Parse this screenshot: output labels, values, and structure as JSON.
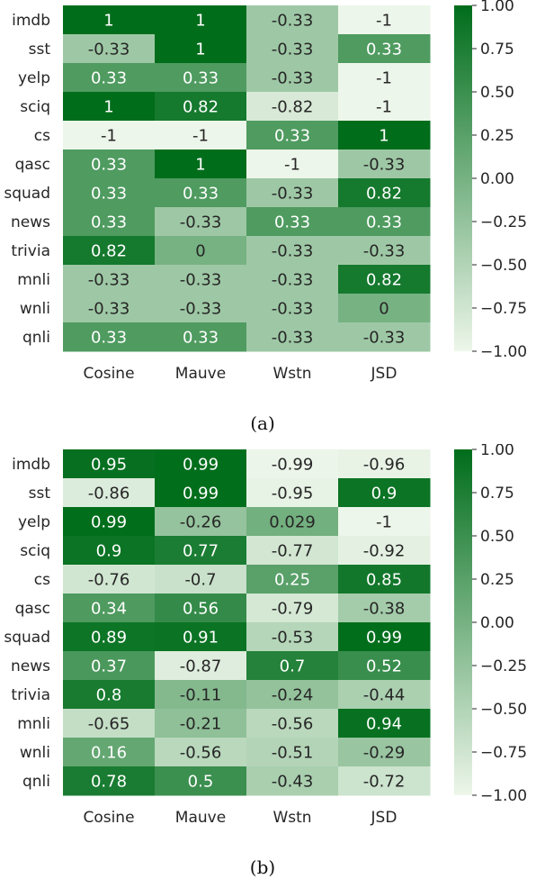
{
  "colors": {
    "low": "#edf6ea",
    "high": "#006d1b"
  },
  "chart_data": [
    {
      "type": "heatmap",
      "caption": "(a)",
      "rows": [
        "imdb",
        "sst",
        "yelp",
        "sciq",
        "cs",
        "qasc",
        "squad",
        "news",
        "trivia",
        "mnli",
        "wnli",
        "qnli"
      ],
      "columns": [
        "Cosine",
        "Mauve",
        "Wstn",
        "JSD"
      ],
      "values": [
        [
          1,
          1,
          -0.33,
          -1
        ],
        [
          -0.33,
          1,
          -0.33,
          0.33
        ],
        [
          0.33,
          0.33,
          -0.33,
          -1
        ],
        [
          1,
          0.82,
          -0.82,
          -1
        ],
        [
          -1,
          -1,
          0.33,
          1
        ],
        [
          0.33,
          1,
          -1,
          -0.33
        ],
        [
          0.33,
          0.33,
          -0.33,
          0.82
        ],
        [
          0.33,
          -0.33,
          0.33,
          0.33
        ],
        [
          0.82,
          0,
          -0.33,
          -0.33
        ],
        [
          -0.33,
          -0.33,
          -0.33,
          0.82
        ],
        [
          -0.33,
          -0.33,
          -0.33,
          0
        ],
        [
          0.33,
          0.33,
          -0.33,
          -0.33
        ]
      ],
      "labels": [
        [
          "1",
          "1",
          "-0.33",
          "-1"
        ],
        [
          "-0.33",
          "1",
          "-0.33",
          "0.33"
        ],
        [
          "0.33",
          "0.33",
          "-0.33",
          "-1"
        ],
        [
          "1",
          "0.82",
          "-0.82",
          "-1"
        ],
        [
          "-1",
          "-1",
          "0.33",
          "1"
        ],
        [
          "0.33",
          "1",
          "-1",
          "-0.33"
        ],
        [
          "0.33",
          "0.33",
          "-0.33",
          "0.82"
        ],
        [
          "0.33",
          "-0.33",
          "0.33",
          "0.33"
        ],
        [
          "0.82",
          "0",
          "-0.33",
          "-0.33"
        ],
        [
          "-0.33",
          "-0.33",
          "-0.33",
          "0.82"
        ],
        [
          "-0.33",
          "-0.33",
          "-0.33",
          "0"
        ],
        [
          "0.33",
          "0.33",
          "-0.33",
          "-0.33"
        ]
      ],
      "colorbar": {
        "range": [
          -1,
          1
        ],
        "ticks": [
          "1.00",
          "0.75",
          "0.50",
          "0.25",
          "0.00",
          "−0.25",
          "−0.50",
          "−0.75",
          "−1.00"
        ],
        "tick_values": [
          1,
          0.75,
          0.5,
          0.25,
          0,
          -0.25,
          -0.5,
          -0.75,
          -1
        ]
      }
    },
    {
      "type": "heatmap",
      "caption": "(b)",
      "rows": [
        "imdb",
        "sst",
        "yelp",
        "sciq",
        "cs",
        "qasc",
        "squad",
        "news",
        "trivia",
        "mnli",
        "wnli",
        "qnli"
      ],
      "columns": [
        "Cosine",
        "Mauve",
        "Wstn",
        "JSD"
      ],
      "values": [
        [
          0.95,
          0.99,
          -0.99,
          -0.96
        ],
        [
          -0.86,
          0.99,
          -0.95,
          0.9
        ],
        [
          0.99,
          -0.26,
          0.029,
          -1
        ],
        [
          0.9,
          0.77,
          -0.77,
          -0.92
        ],
        [
          -0.76,
          -0.7,
          0.25,
          0.85
        ],
        [
          0.34,
          0.56,
          -0.79,
          -0.38
        ],
        [
          0.89,
          0.91,
          -0.53,
          0.99
        ],
        [
          0.37,
          -0.87,
          0.7,
          0.52
        ],
        [
          0.8,
          -0.11,
          -0.24,
          -0.44
        ],
        [
          -0.65,
          -0.21,
          -0.56,
          0.94
        ],
        [
          0.16,
          -0.56,
          -0.51,
          -0.29
        ],
        [
          0.78,
          0.5,
          -0.43,
          -0.72
        ]
      ],
      "labels": [
        [
          "0.95",
          "0.99",
          "-0.99",
          "-0.96"
        ],
        [
          "-0.86",
          "0.99",
          "-0.95",
          "0.9"
        ],
        [
          "0.99",
          "-0.26",
          "0.029",
          "-1"
        ],
        [
          "0.9",
          "0.77",
          "-0.77",
          "-0.92"
        ],
        [
          "-0.76",
          "-0.7",
          "0.25",
          "0.85"
        ],
        [
          "0.34",
          "0.56",
          "-0.79",
          "-0.38"
        ],
        [
          "0.89",
          "0.91",
          "-0.53",
          "0.99"
        ],
        [
          "0.37",
          "-0.87",
          "0.7",
          "0.52"
        ],
        [
          "0.8",
          "-0.11",
          "-0.24",
          "-0.44"
        ],
        [
          "-0.65",
          "-0.21",
          "-0.56",
          "0.94"
        ],
        [
          "0.16",
          "-0.56",
          "-0.51",
          "-0.29"
        ],
        [
          "0.78",
          "0.5",
          "-0.43",
          "-0.72"
        ]
      ],
      "colorbar": {
        "range": [
          -1,
          1
        ],
        "ticks": [
          "1.00",
          "0.75",
          "0.50",
          "0.25",
          "0.00",
          "−0.25",
          "−0.50",
          "−0.75",
          "−1.00"
        ],
        "tick_values": [
          1,
          0.75,
          0.5,
          0.25,
          0,
          -0.25,
          -0.5,
          -0.75,
          -1
        ]
      }
    }
  ]
}
